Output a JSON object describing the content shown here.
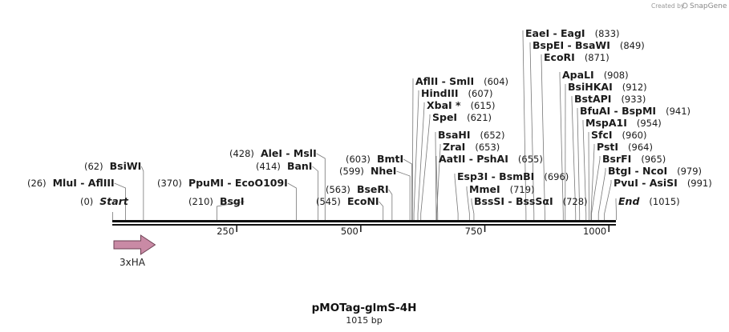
{
  "credit": {
    "prefix": "Created by",
    "brand": "SnapGene"
  },
  "plasmid": {
    "name": "pMOTag-glmS-4H",
    "length_label": "1015 bp",
    "length_bp": 1015
  },
  "ruler": {
    "ticks": [
      250,
      500,
      750,
      1000
    ],
    "tick_labels": [
      "250",
      "500",
      "750",
      "1000"
    ]
  },
  "feature": {
    "name": "3xHA",
    "start_bp": 0,
    "end_bp": 84,
    "color": "#c98aa5",
    "direction": "forward"
  },
  "sites": [
    {
      "label": "Start",
      "pos": "(0)",
      "bp": 0,
      "italic": true,
      "pos_first": true
    },
    {
      "label": "MluI  -  AflIII",
      "pos": "(26)",
      "bp": 26,
      "pos_first": true
    },
    {
      "label": "BsiWI",
      "pos": "(62)",
      "bp": 62,
      "pos_first": true
    },
    {
      "label": "BsgI",
      "pos": "(210)",
      "bp": 210,
      "pos_first": true
    },
    {
      "label": "PpuMI  -  EcoO109I",
      "pos": "(370)",
      "bp": 370,
      "pos_first": true
    },
    {
      "label": "BanI",
      "pos": "(414)",
      "bp": 414,
      "pos_first": true
    },
    {
      "label": "AleI  -  MslI",
      "pos": "(428)",
      "bp": 428,
      "pos_first": true
    },
    {
      "label": "EcoNI",
      "pos": "(545)",
      "bp": 545,
      "pos_first": true
    },
    {
      "label": "BseRI",
      "pos": "(563)",
      "bp": 563,
      "pos_first": true
    },
    {
      "label": "NheI",
      "pos": "(599)",
      "bp": 599,
      "pos_first": true
    },
    {
      "label": "BmtI",
      "pos": "(603)",
      "bp": 603,
      "pos_first": true
    },
    {
      "label": "AflII  -  SmlI",
      "pos": "(604)",
      "bp": 604
    },
    {
      "label": "HindIII",
      "pos": "(607)",
      "bp": 607
    },
    {
      "label": "XbaI *",
      "pos": "(615)",
      "bp": 615
    },
    {
      "label": "SpeI",
      "pos": "(621)",
      "bp": 621
    },
    {
      "label": "BsaHI",
      "pos": "(652)",
      "bp": 652
    },
    {
      "label": "ZraI",
      "pos": "(653)",
      "bp": 653
    },
    {
      "label": "AatII  -  PshAI",
      "pos": "(655)",
      "bp": 655
    },
    {
      "label": "Esp3I  -  BsmBI",
      "pos": "(696)",
      "bp": 696
    },
    {
      "label": "MmeI",
      "pos": "(719)",
      "bp": 719
    },
    {
      "label": "BssSI  -  BssSαI",
      "pos": "(728)",
      "bp": 728
    },
    {
      "label": "EaeI  -  EagI",
      "pos": "(833)",
      "bp": 833
    },
    {
      "label": "BspEI  -  BsaWI",
      "pos": "(849)",
      "bp": 849
    },
    {
      "label": "EcoRI",
      "pos": "(871)",
      "bp": 871
    },
    {
      "label": "ApaLI",
      "pos": "(908)",
      "bp": 908
    },
    {
      "label": "BsiHKAI",
      "pos": "(912)",
      "bp": 912
    },
    {
      "label": "BstAPI",
      "pos": "(933)",
      "bp": 933
    },
    {
      "label": "BfuAI  -  BspMI",
      "pos": "(941)",
      "bp": 941
    },
    {
      "label": "MspA1I",
      "pos": "(954)",
      "bp": 954
    },
    {
      "label": "SfcI",
      "pos": "(960)",
      "bp": 960
    },
    {
      "label": "PstI",
      "pos": "(964)",
      "bp": 964
    },
    {
      "label": "BsrFI",
      "pos": "(965)",
      "bp": 965
    },
    {
      "label": "BtgI  -  NcoI",
      "pos": "(979)",
      "bp": 979
    },
    {
      "label": "PvuI  -  AsiSI",
      "pos": "(991)",
      "bp": 991
    },
    {
      "label": "End",
      "pos": "(1015)",
      "bp": 1015,
      "italic": true
    }
  ]
}
